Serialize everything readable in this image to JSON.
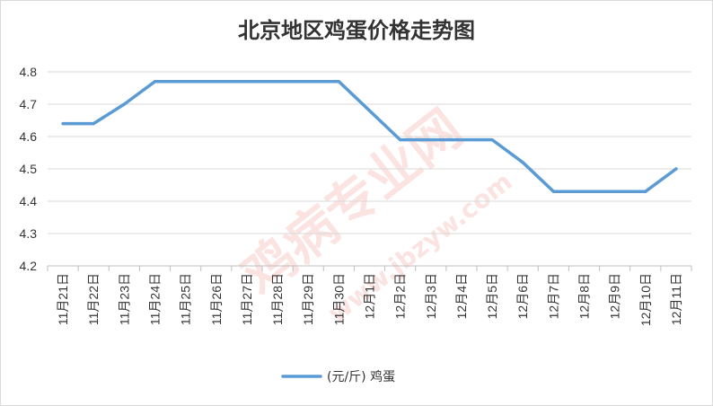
{
  "chart_data": {
    "type": "line",
    "title": "北京地区鸡蛋价格走势图",
    "categories": [
      "11月21日",
      "11月22日",
      "11月23日",
      "11月24日",
      "11月25日",
      "11月26日",
      "11月27日",
      "11月28日",
      "11月29日",
      "11月30日",
      "12月1日",
      "12月2日",
      "12月3日",
      "12月4日",
      "12月5日",
      "12月6日",
      "12月7日",
      "12月8日",
      "12月9日",
      "12月10日",
      "12月11日"
    ],
    "series": [
      {
        "name": "(元/斤) 鸡蛋",
        "color": "#5b9bd5",
        "values": [
          4.64,
          4.64,
          4.7,
          4.77,
          4.77,
          4.77,
          4.77,
          4.77,
          4.77,
          4.77,
          4.68,
          4.59,
          4.59,
          4.59,
          4.59,
          4.52,
          4.43,
          4.43,
          4.43,
          4.43,
          4.5
        ]
      }
    ],
    "ylim": [
      4.2,
      4.8
    ],
    "yticks": [
      "4.2",
      "4.3",
      "4.4",
      "4.5",
      "4.6",
      "4.7",
      "4.8"
    ],
    "grid": true,
    "legend": "bottom"
  },
  "watermark": {
    "main": "鸡病专业网",
    "url": "www.jbzyw.com"
  }
}
